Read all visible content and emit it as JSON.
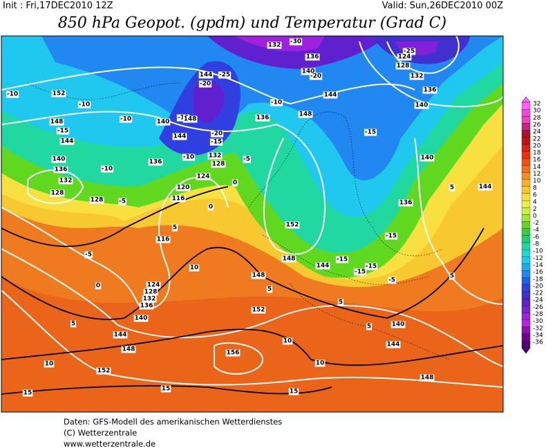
{
  "header": {
    "init": "Init : Fri,17DEC2010 12Z",
    "valid": "Valid: Sun,26DEC2010 00Z",
    "title": "850 hPa Geopot. (gpdm) und Temperatur (Grad C)"
  },
  "legend": {
    "labels": [
      "32",
      "30",
      "28",
      "26",
      "24",
      "22",
      "20",
      "18",
      "16",
      "14",
      "12",
      "10",
      "8",
      "6",
      "4",
      "2",
      "0",
      "-2",
      "-4",
      "-6",
      "-8",
      "-10",
      "-12",
      "-14",
      "-16",
      "-18",
      "-20",
      "-22",
      "-24",
      "-26",
      "-28",
      "-30",
      "-32",
      "-34",
      "-36"
    ],
    "colors": [
      "#ff60ff",
      "#ff40e0",
      "#f040c0",
      "#d02080",
      "#b01020",
      "#c81010",
      "#e02010",
      "#f03010",
      "#f05010",
      "#f07020",
      "#f09020",
      "#f8b030",
      "#f8c830",
      "#f8e040",
      "#e8f040",
      "#c8f040",
      "#a0e830",
      "#60d820",
      "#30d040",
      "#20d070",
      "#20d8a0",
      "#20d8d0",
      "#20c8f0",
      "#20a8f0",
      "#2088f0",
      "#2060e8",
      "#3040e0",
      "#4030d0",
      "#6020d0",
      "#8020d8",
      "#a020e0",
      "#c020e0",
      "#9010b0",
      "#700090",
      "#500070"
    ]
  },
  "map": {
    "labels": [
      "132",
      "-30",
      "136",
      "-25",
      "124",
      "128",
      "132",
      "136",
      "140",
      "-20",
      "144",
      "-25",
      "-20",
      "144",
      "-10",
      "-10",
      "152",
      "-10",
      "148",
      "-10",
      "140",
      "-10",
      "148",
      "136",
      "148",
      "-15",
      "140",
      "-15",
      "144",
      "144",
      "-20",
      "-15",
      "136",
      "-10",
      "132",
      "128",
      "-5",
      "140",
      "-10",
      "136",
      "140",
      "124",
      "0",
      "132",
      "144",
      "5",
      "120",
      "128",
      "116",
      "128",
      "-5",
      "0",
      "136",
      "152",
      "5",
      "116",
      "-15",
      "-5",
      "148",
      "-15",
      "144",
      "-15",
      "-15",
      "10",
      "148",
      "5",
      "-5",
      "0",
      "5",
      "124",
      "128",
      "132",
      "136",
      "5",
      "152",
      "140",
      "5",
      "140",
      "5",
      "144",
      "10",
      "144",
      "148",
      "156",
      "10",
      "10",
      "152",
      "148",
      "15",
      "15",
      "15"
    ]
  },
  "footer": {
    "lines": [
      "Daten: GFS-Modell des amerikanischen Wetterdienstes",
      "(C) Wetterzentrale",
      "www.wetterzentrale.de"
    ]
  }
}
